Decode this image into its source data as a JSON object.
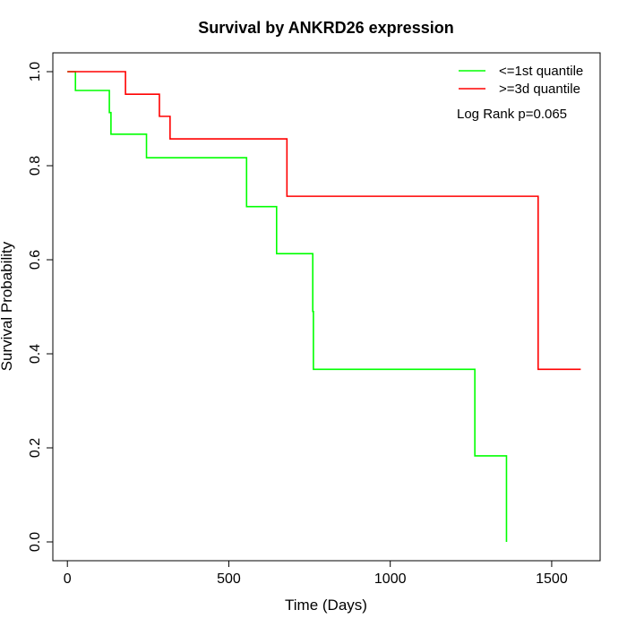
{
  "chart_data": {
    "type": "line",
    "subtype": "kaplan-meier step",
    "title": "Survival by ANKRD26 expression",
    "xlabel": "Time (Days)",
    "ylabel": "Survival Probability",
    "xlim": [
      -45,
      1650
    ],
    "ylim": [
      -0.04,
      1.04
    ],
    "xticks": [
      0,
      500,
      1000,
      1500
    ],
    "yticks": [
      0.0,
      0.2,
      0.4,
      0.6,
      0.8,
      1.0
    ],
    "xtick_labels": [
      "0",
      "500",
      "1000",
      "1500"
    ],
    "ytick_labels": [
      "0.0",
      "0.2",
      "0.4",
      "0.6",
      "0.8",
      "1.0"
    ],
    "grid": false,
    "legend_position": "top-right",
    "annotation": "Log Rank p=0.065",
    "series": [
      {
        "name": "<=1st quantile",
        "color": "#00ff00",
        "steps": [
          [
            0,
            1.0
          ],
          [
            25,
            0.96
          ],
          [
            130,
            0.913
          ],
          [
            135,
            0.867
          ],
          [
            245,
            0.817
          ],
          [
            555,
            0.713
          ],
          [
            648,
            0.613
          ],
          [
            760,
            0.49
          ],
          [
            762,
            0.367
          ],
          [
            1262,
            0.183
          ],
          [
            1360,
            0.0
          ]
        ],
        "end_x": 1360
      },
      {
        "name": ">=3d quantile",
        "color": "#ff0000",
        "steps": [
          [
            0,
            1.0
          ],
          [
            180,
            0.952
          ],
          [
            285,
            0.905
          ],
          [
            318,
            0.857
          ],
          [
            680,
            0.735
          ],
          [
            1458,
            0.367
          ]
        ],
        "end_x": 1590
      }
    ]
  }
}
